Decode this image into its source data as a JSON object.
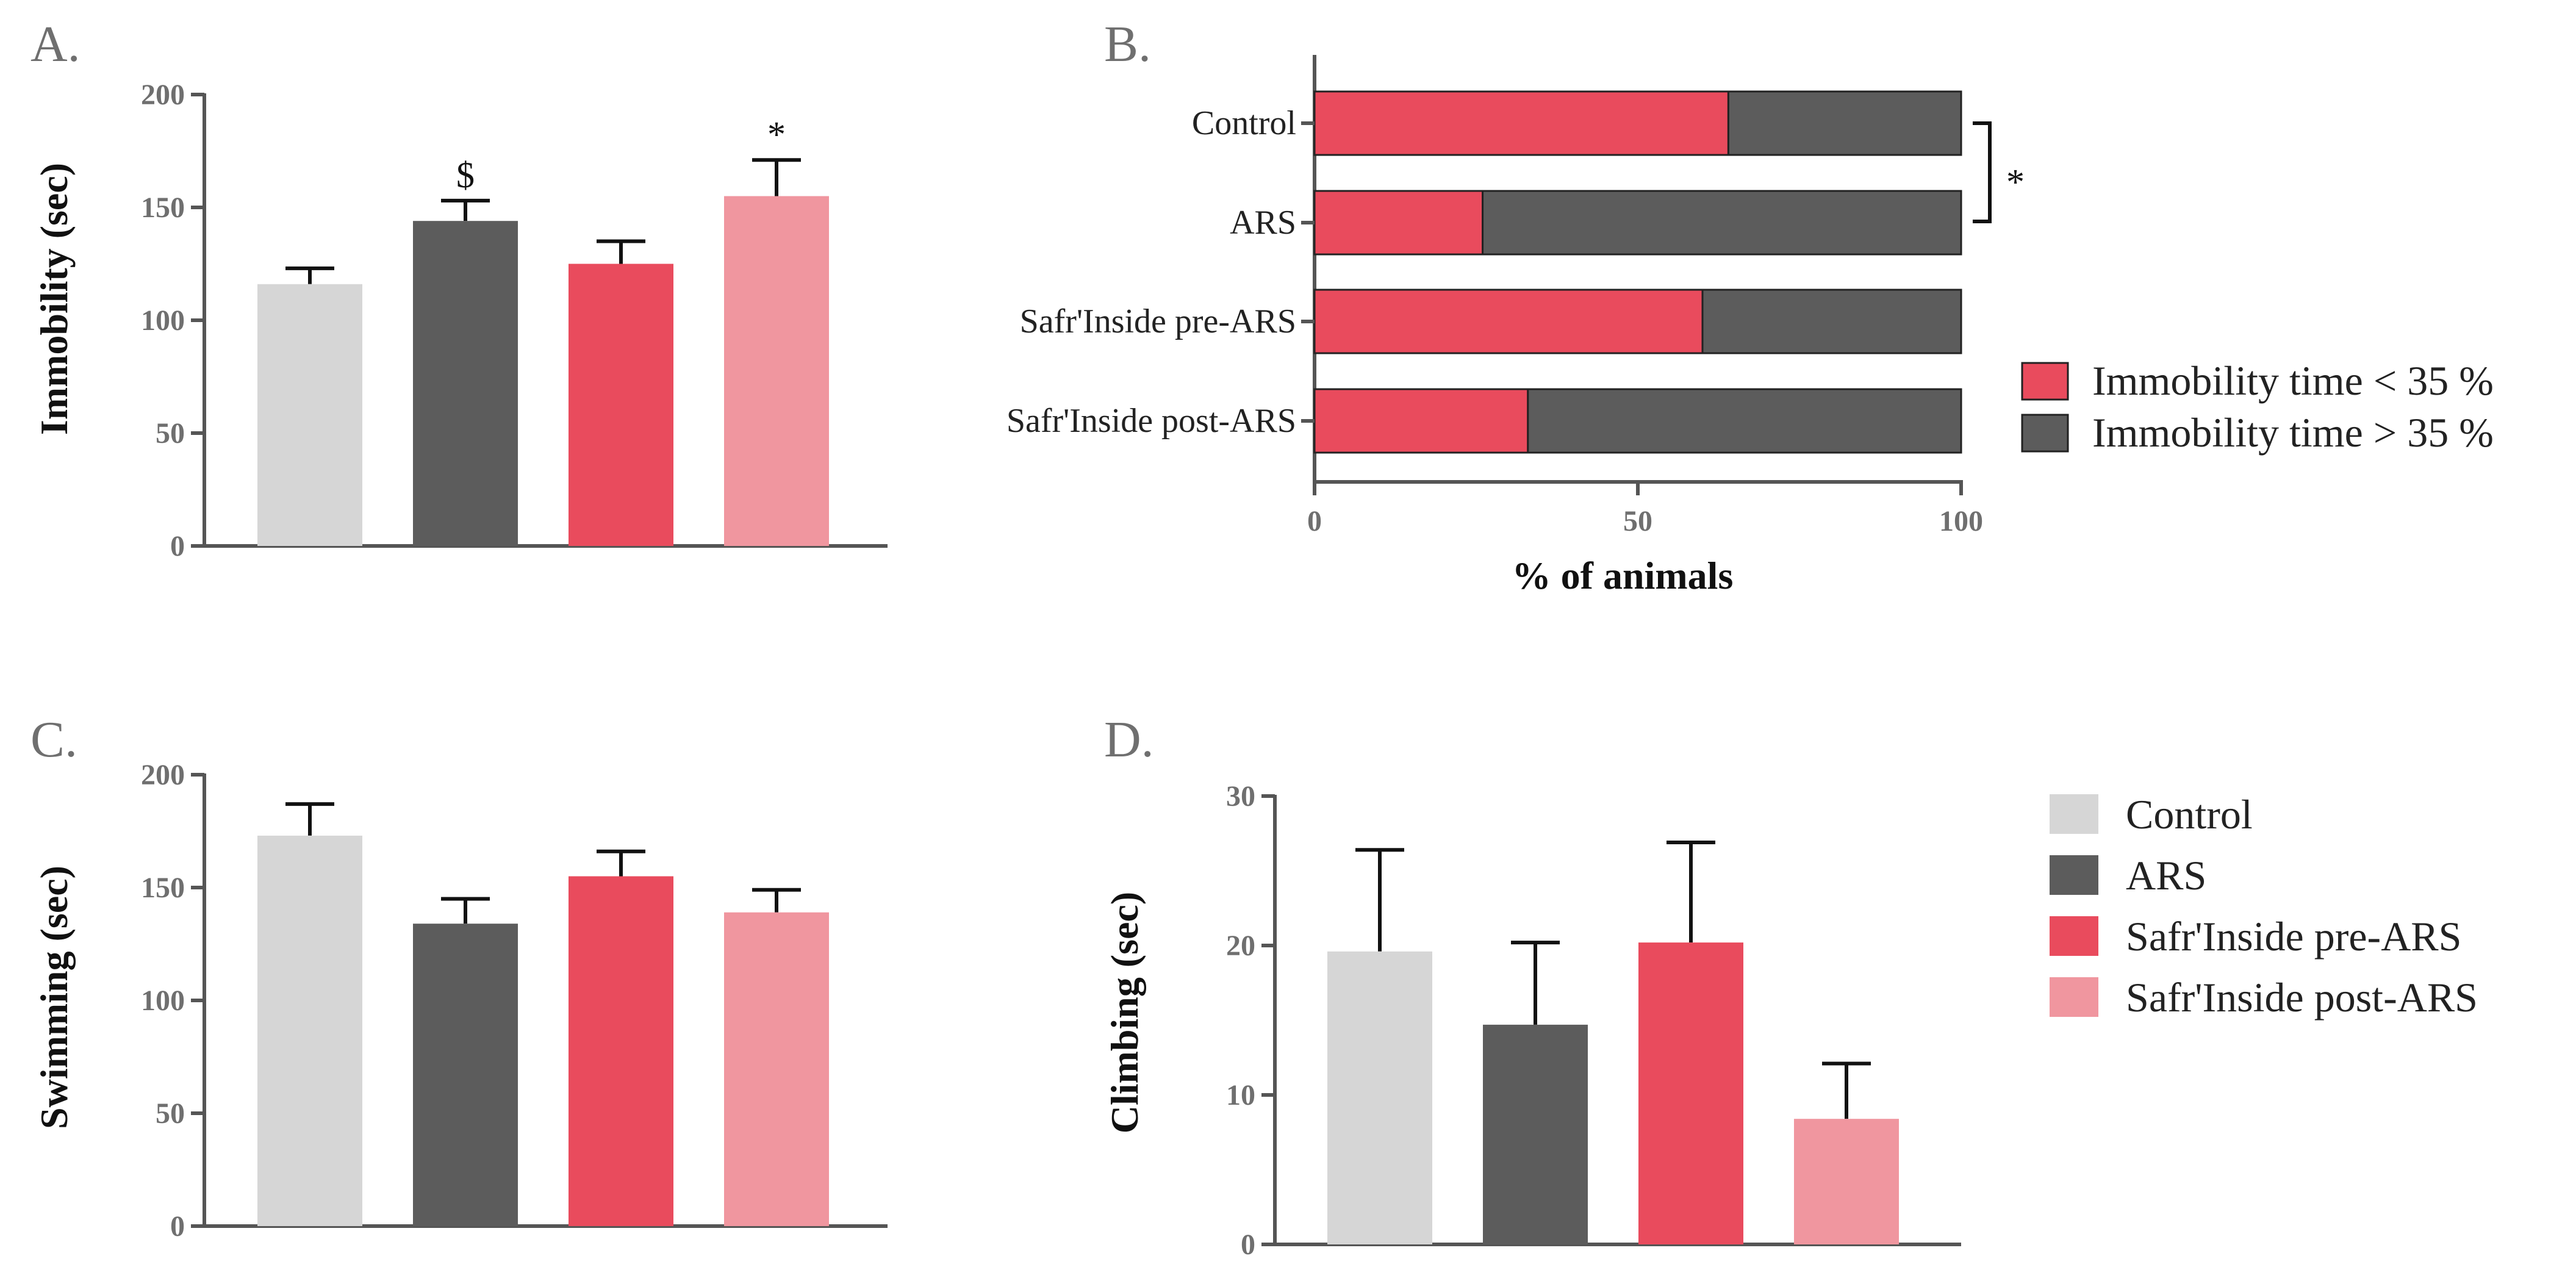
{
  "colors": {
    "control": "#d6d6d6",
    "ars": "#5c5c5c",
    "pre": "#e94b5d",
    "post": "#f0969f"
  },
  "groups": [
    "Control",
    "ARS",
    "Safr'Inside pre-ARS",
    "Safr'Inside post-ARS"
  ],
  "chart_data": [
    {
      "panel": "A.",
      "type": "bar",
      "ylabel": "Immobility (sec)",
      "ylim": [
        0,
        200
      ],
      "yticks": [
        "0",
        "50",
        "100",
        "150",
        "200"
      ],
      "categories": [
        "Control",
        "ARS",
        "Safr'Inside pre-ARS",
        "Safr'Inside post-ARS"
      ],
      "values": [
        116,
        144,
        125,
        155
      ],
      "errors": [
        7,
        9,
        10,
        16
      ],
      "annotations": [
        "",
        "$",
        "",
        "*"
      ]
    },
    {
      "panel": "B.",
      "type": "bar",
      "orientation": "horizontal-stacked",
      "xlabel": "% of animals",
      "xlim": [
        0,
        100
      ],
      "xticks": [
        "0",
        "50",
        "100"
      ],
      "categories": [
        "Control",
        "ARS",
        "Safr'Inside pre-ARS",
        "Safr'Inside post-ARS"
      ],
      "series": [
        {
          "name": "Immobility time < 35 %",
          "values": [
            64,
            26,
            60,
            33
          ]
        },
        {
          "name": "Immobility time > 35 %",
          "values": [
            36,
            74,
            40,
            67
          ]
        }
      ],
      "significance": "*"
    },
    {
      "panel": "C.",
      "type": "bar",
      "ylabel": "Swimming (sec)",
      "ylim": [
        0,
        200
      ],
      "yticks": [
        "0",
        "50",
        "100",
        "150",
        "200"
      ],
      "categories": [
        "Control",
        "ARS",
        "Safr'Inside pre-ARS",
        "Safr'Inside post-ARS"
      ],
      "values": [
        173,
        134,
        155,
        139
      ],
      "errors": [
        14,
        11,
        11,
        10
      ],
      "annotations": [
        "",
        "",
        "",
        ""
      ]
    },
    {
      "panel": "D.",
      "type": "bar",
      "ylabel": "Climbing (sec)",
      "ylim": [
        0,
        30
      ],
      "yticks": [
        "0",
        "10",
        "20",
        "30"
      ],
      "categories": [
        "Control",
        "ARS",
        "Safr'Inside pre-ARS",
        "Safr'Inside post-ARS"
      ],
      "values": [
        19.6,
        14.7,
        20.2,
        8.4
      ],
      "errors": [
        6.8,
        5.5,
        6.7,
        3.7
      ],
      "annotations": [
        "",
        "",
        "",
        ""
      ]
    }
  ],
  "legend_b": [
    "Immobility time < 35 %",
    "Immobility time > 35 %"
  ],
  "legend_groups": [
    "Control",
    "ARS",
    "Safr'Inside pre-ARS",
    "Safr'Inside post-ARS"
  ]
}
